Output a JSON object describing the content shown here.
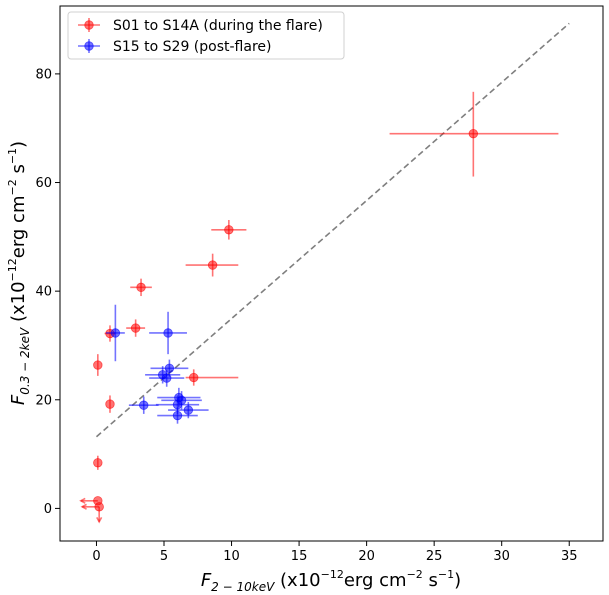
{
  "chart_data": {
    "type": "scatter",
    "xlim": [
      -2.7,
      37.5
    ],
    "ylim": [
      -6.0,
      92.5
    ],
    "x_ticks": [
      0,
      5,
      10,
      15,
      20,
      25,
      30,
      35
    ],
    "y_ticks": [
      0,
      20,
      40,
      60,
      80
    ],
    "xlabel": {
      "main": "F",
      "sub": "2 − 10keV",
      "rest": " (x10",
      "sup1": "−12",
      "mid": "erg cm",
      "sup2": "−2",
      "mid2": " s",
      "sup3": "−1",
      "end": ")"
    },
    "ylabel": {
      "main": "F",
      "sub": "0.3 − 2keV",
      "rest": " (x10",
      "sup1": "−12",
      "mid": "erg cm",
      "sup2": "−2",
      "mid2": " s",
      "sup3": "−1",
      "end": ")"
    },
    "legend": {
      "position": "top-left"
    },
    "reference_line": {
      "style": "dashed",
      "color": "#7f7f7f",
      "points": [
        [
          0,
          13.2
        ],
        [
          35,
          89.3
        ]
      ]
    },
    "series": [
      {
        "name": "S01 to S14A (during the flare)",
        "color": "#ff0000",
        "points": [
          {
            "x": 27.9,
            "y": 69.0,
            "xerr": [
              6.2,
              6.3
            ],
            "yerr": [
              7.9,
              7.7
            ]
          },
          {
            "x": 9.8,
            "y": 51.3,
            "xerr": [
              1.3,
              1.3
            ],
            "yerr": [
              1.8,
              1.8
            ]
          },
          {
            "x": 8.6,
            "y": 44.8,
            "xerr": [
              2.0,
              1.9
            ],
            "yerr": [
              2.1,
              2.1
            ]
          },
          {
            "x": 3.3,
            "y": 40.7,
            "xerr": [
              0.8,
              0.8
            ],
            "yerr": [
              1.6,
              1.6
            ]
          },
          {
            "x": 2.9,
            "y": 33.2,
            "xerr": [
              0.7,
              0.7
            ],
            "yerr": [
              1.6,
              1.6
            ]
          },
          {
            "x": 1.0,
            "y": 32.2,
            "xerr": [
              0.4,
              0.4
            ],
            "yerr": [
              1.5,
              1.5
            ]
          },
          {
            "x": 7.2,
            "y": 24.1,
            "xerr": [
              0.6,
              3.3
            ],
            "yerr": [
              1.5,
              1.5
            ]
          },
          {
            "x": 0.1,
            "y": 26.4,
            "xerr": [
              0.0,
              0.0
            ],
            "yerr": [
              2.0,
              2.0
            ]
          },
          {
            "x": 1.0,
            "y": 19.2,
            "xerr": [
              0.0,
              0.0
            ],
            "yerr": [
              1.6,
              1.6
            ]
          },
          {
            "x": 0.1,
            "y": 8.4,
            "xerr": [
              0.0,
              0.0
            ],
            "yerr": [
              1.3,
              1.3
            ]
          },
          {
            "x": 0.1,
            "y": 1.4,
            "upper_x": true
          },
          {
            "x": 0.2,
            "y": 0.3,
            "upper_x": true,
            "upper_y": true
          }
        ]
      },
      {
        "name": "S15 to S29 (post-flare)",
        "color": "#0000ff",
        "points": [
          {
            "x": 1.4,
            "y": 32.3,
            "xerr": [
              0.7,
              0.7
            ],
            "yerr": [
              5.2,
              5.2
            ]
          },
          {
            "x": 5.3,
            "y": 32.3,
            "xerr": [
              1.4,
              1.4
            ],
            "yerr": [
              3.9,
              3.9
            ]
          },
          {
            "x": 5.4,
            "y": 25.8,
            "xerr": [
              1.4,
              1.4
            ],
            "yerr": [
              1.6,
              1.6
            ]
          },
          {
            "x": 4.9,
            "y": 24.6,
            "xerr": [
              1.3,
              1.3
            ],
            "yerr": [
              1.6,
              1.6
            ]
          },
          {
            "x": 5.2,
            "y": 24.0,
            "xerr": [
              1.3,
              1.3
            ],
            "yerr": [
              1.6,
              1.6
            ]
          },
          {
            "x": 6.1,
            "y": 20.4,
            "xerr": [
              1.6,
              1.6
            ],
            "yerr": [
              1.8,
              1.8
            ]
          },
          {
            "x": 6.3,
            "y": 19.9,
            "xerr": [
              1.5,
              1.5
            ],
            "yerr": [
              1.7,
              1.7
            ]
          },
          {
            "x": 6.0,
            "y": 19.1,
            "xerr": [
              1.6,
              1.6
            ],
            "yerr": [
              1.7,
              1.7
            ]
          },
          {
            "x": 3.5,
            "y": 19.0,
            "xerr": [
              1.1,
              1.1
            ],
            "yerr": [
              1.6,
              1.6
            ]
          },
          {
            "x": 6.8,
            "y": 18.1,
            "xerr": [
              1.5,
              1.5
            ],
            "yerr": [
              1.5,
              1.5
            ]
          },
          {
            "x": 6.0,
            "y": 17.1,
            "xerr": [
              1.5,
              1.5
            ],
            "yerr": [
              1.5,
              1.5
            ]
          }
        ]
      }
    ]
  }
}
